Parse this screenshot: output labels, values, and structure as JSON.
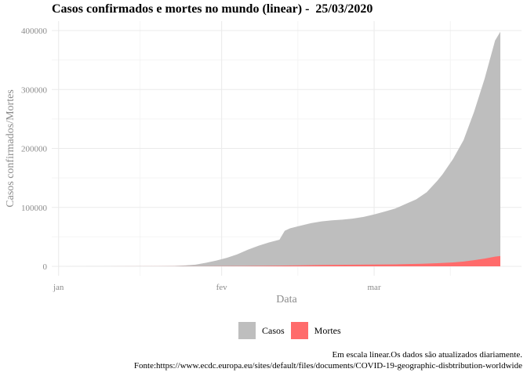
{
  "chart_data": {
    "type": "area",
    "title": "Casos confirmados e mortes no mundo (linear) -  25/03/2020",
    "xlabel": "Data",
    "ylabel": "Casos confirmados/Mortes",
    "x_tick_labels": [
      "jan",
      "fev",
      "mar"
    ],
    "x_tick_dates": [
      "2020-01-01",
      "2020-02-01",
      "2020-03-01"
    ],
    "xlim": [
      "2019-12-31",
      "2020-03-25"
    ],
    "y_ticks": [
      0,
      100000,
      200000,
      300000,
      400000
    ],
    "ylim": [
      0,
      400000
    ],
    "grid": true,
    "legend_position": "bottom",
    "series": [
      {
        "name": "Casos",
        "color": "#bebebe",
        "points": [
          [
            "2019-12-31",
            0
          ],
          [
            "2020-01-20",
            300
          ],
          [
            "2020-01-23",
            600
          ],
          [
            "2020-01-25",
            1500
          ],
          [
            "2020-01-27",
            2800
          ],
          [
            "2020-01-29",
            6000
          ],
          [
            "2020-01-31",
            9800
          ],
          [
            "2020-02-02",
            14500
          ],
          [
            "2020-02-04",
            20500
          ],
          [
            "2020-02-06",
            28200
          ],
          [
            "2020-02-08",
            34900
          ],
          [
            "2020-02-10",
            40600
          ],
          [
            "2020-02-12",
            45200
          ],
          [
            "2020-02-13",
            60300
          ],
          [
            "2020-02-14",
            64400
          ],
          [
            "2020-02-16",
            69000
          ],
          [
            "2020-02-18",
            73300
          ],
          [
            "2020-02-20",
            76200
          ],
          [
            "2020-02-22",
            78000
          ],
          [
            "2020-02-24",
            79300
          ],
          [
            "2020-02-26",
            81100
          ],
          [
            "2020-02-28",
            83900
          ],
          [
            "2020-03-01",
            88000
          ],
          [
            "2020-03-03",
            92800
          ],
          [
            "2020-03-05",
            98000
          ],
          [
            "2020-03-07",
            105800
          ],
          [
            "2020-03-09",
            113600
          ],
          [
            "2020-03-11",
            125800
          ],
          [
            "2020-03-13",
            145000
          ],
          [
            "2020-03-14",
            156000
          ],
          [
            "2020-03-16",
            182000
          ],
          [
            "2020-03-18",
            214000
          ],
          [
            "2020-03-20",
            262000
          ],
          [
            "2020-03-22",
            318000
          ],
          [
            "2020-03-24",
            383000
          ],
          [
            "2020-03-25",
            398000
          ]
        ]
      },
      {
        "name": "Mortes",
        "color": "#ff6b6b",
        "points": [
          [
            "2019-12-31",
            0
          ],
          [
            "2020-01-29",
            130
          ],
          [
            "2020-02-05",
            490
          ],
          [
            "2020-02-12",
            1110
          ],
          [
            "2020-02-13",
            1370
          ],
          [
            "2020-02-20",
            2250
          ],
          [
            "2020-02-27",
            2800
          ],
          [
            "2020-03-05",
            3300
          ],
          [
            "2020-03-10",
            4250
          ],
          [
            "2020-03-13",
            5400
          ],
          [
            "2020-03-16",
            6600
          ],
          [
            "2020-03-18",
            8200
          ],
          [
            "2020-03-20",
            10400
          ],
          [
            "2020-03-22",
            13200
          ],
          [
            "2020-03-24",
            16500
          ],
          [
            "2020-03-25",
            17500
          ]
        ]
      }
    ]
  },
  "legend": {
    "items": [
      {
        "label": "Casos",
        "color": "#bebebe"
      },
      {
        "label": "Mortes",
        "color": "#ff6b6b"
      }
    ]
  },
  "caption": {
    "line1": "Em escala linear.Os dados são atualizados diariamente.",
    "line2": "Fonte:https://www.ecdc.europa.eu/sites/default/files/documents/COVID-19-geographic-disbtribution-worldwide"
  }
}
